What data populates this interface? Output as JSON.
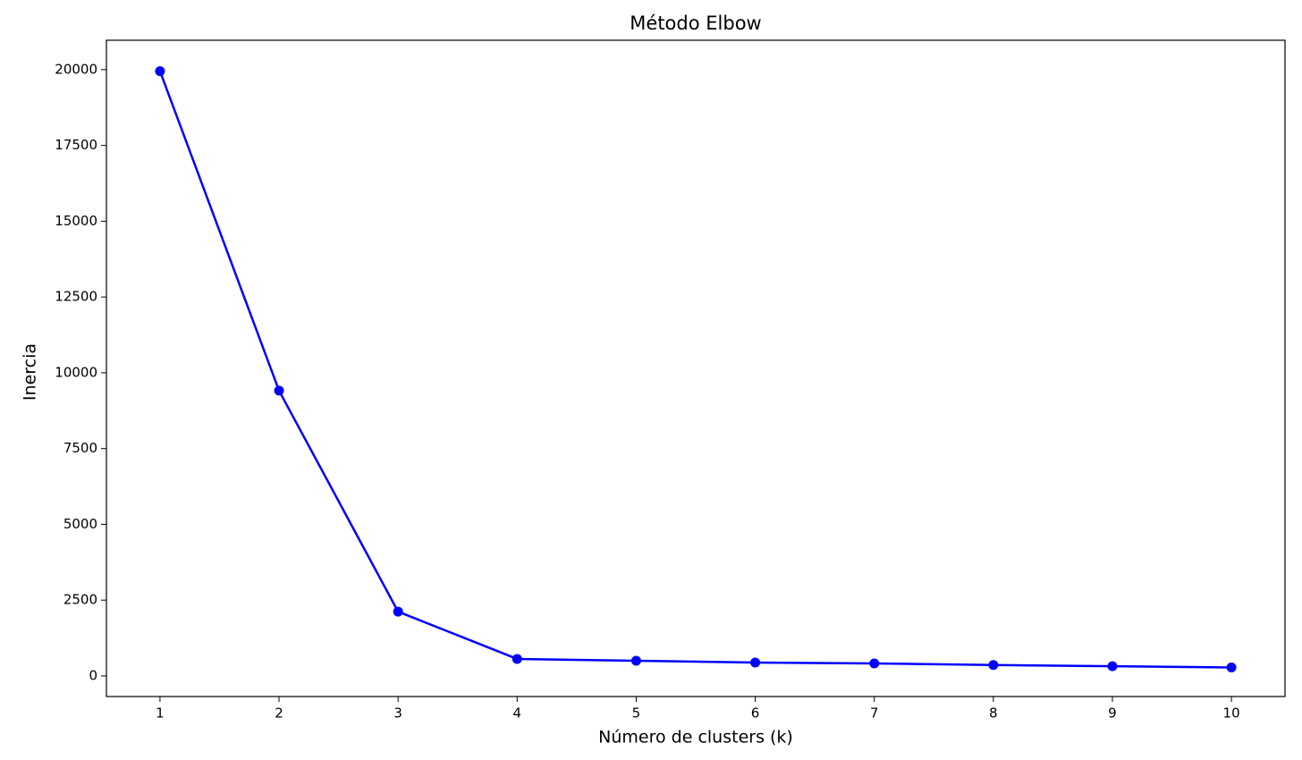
{
  "chart_data": {
    "type": "line",
    "title": "Método Elbow",
    "x_label": "Número de clusters (k)",
    "y_label": "Inercia",
    "x": [
      1,
      2,
      3,
      4,
      5,
      6,
      7,
      8,
      9,
      10
    ],
    "series": [
      {
        "name": "Inercia",
        "color": "#0000ff",
        "values": [
          19950,
          9410,
          2120,
          560,
          500,
          440,
          410,
          360,
          320,
          280
        ]
      }
    ],
    "xlim": [
      0.55,
      10.45
    ],
    "ylim": [
      -680,
      20970
    ],
    "xticks": [
      1,
      2,
      3,
      4,
      5,
      6,
      7,
      8,
      9,
      10
    ],
    "yticks": [
      0,
      2500,
      5000,
      7500,
      10000,
      12500,
      15000,
      17500,
      20000
    ],
    "grid": false,
    "marker": "o"
  }
}
